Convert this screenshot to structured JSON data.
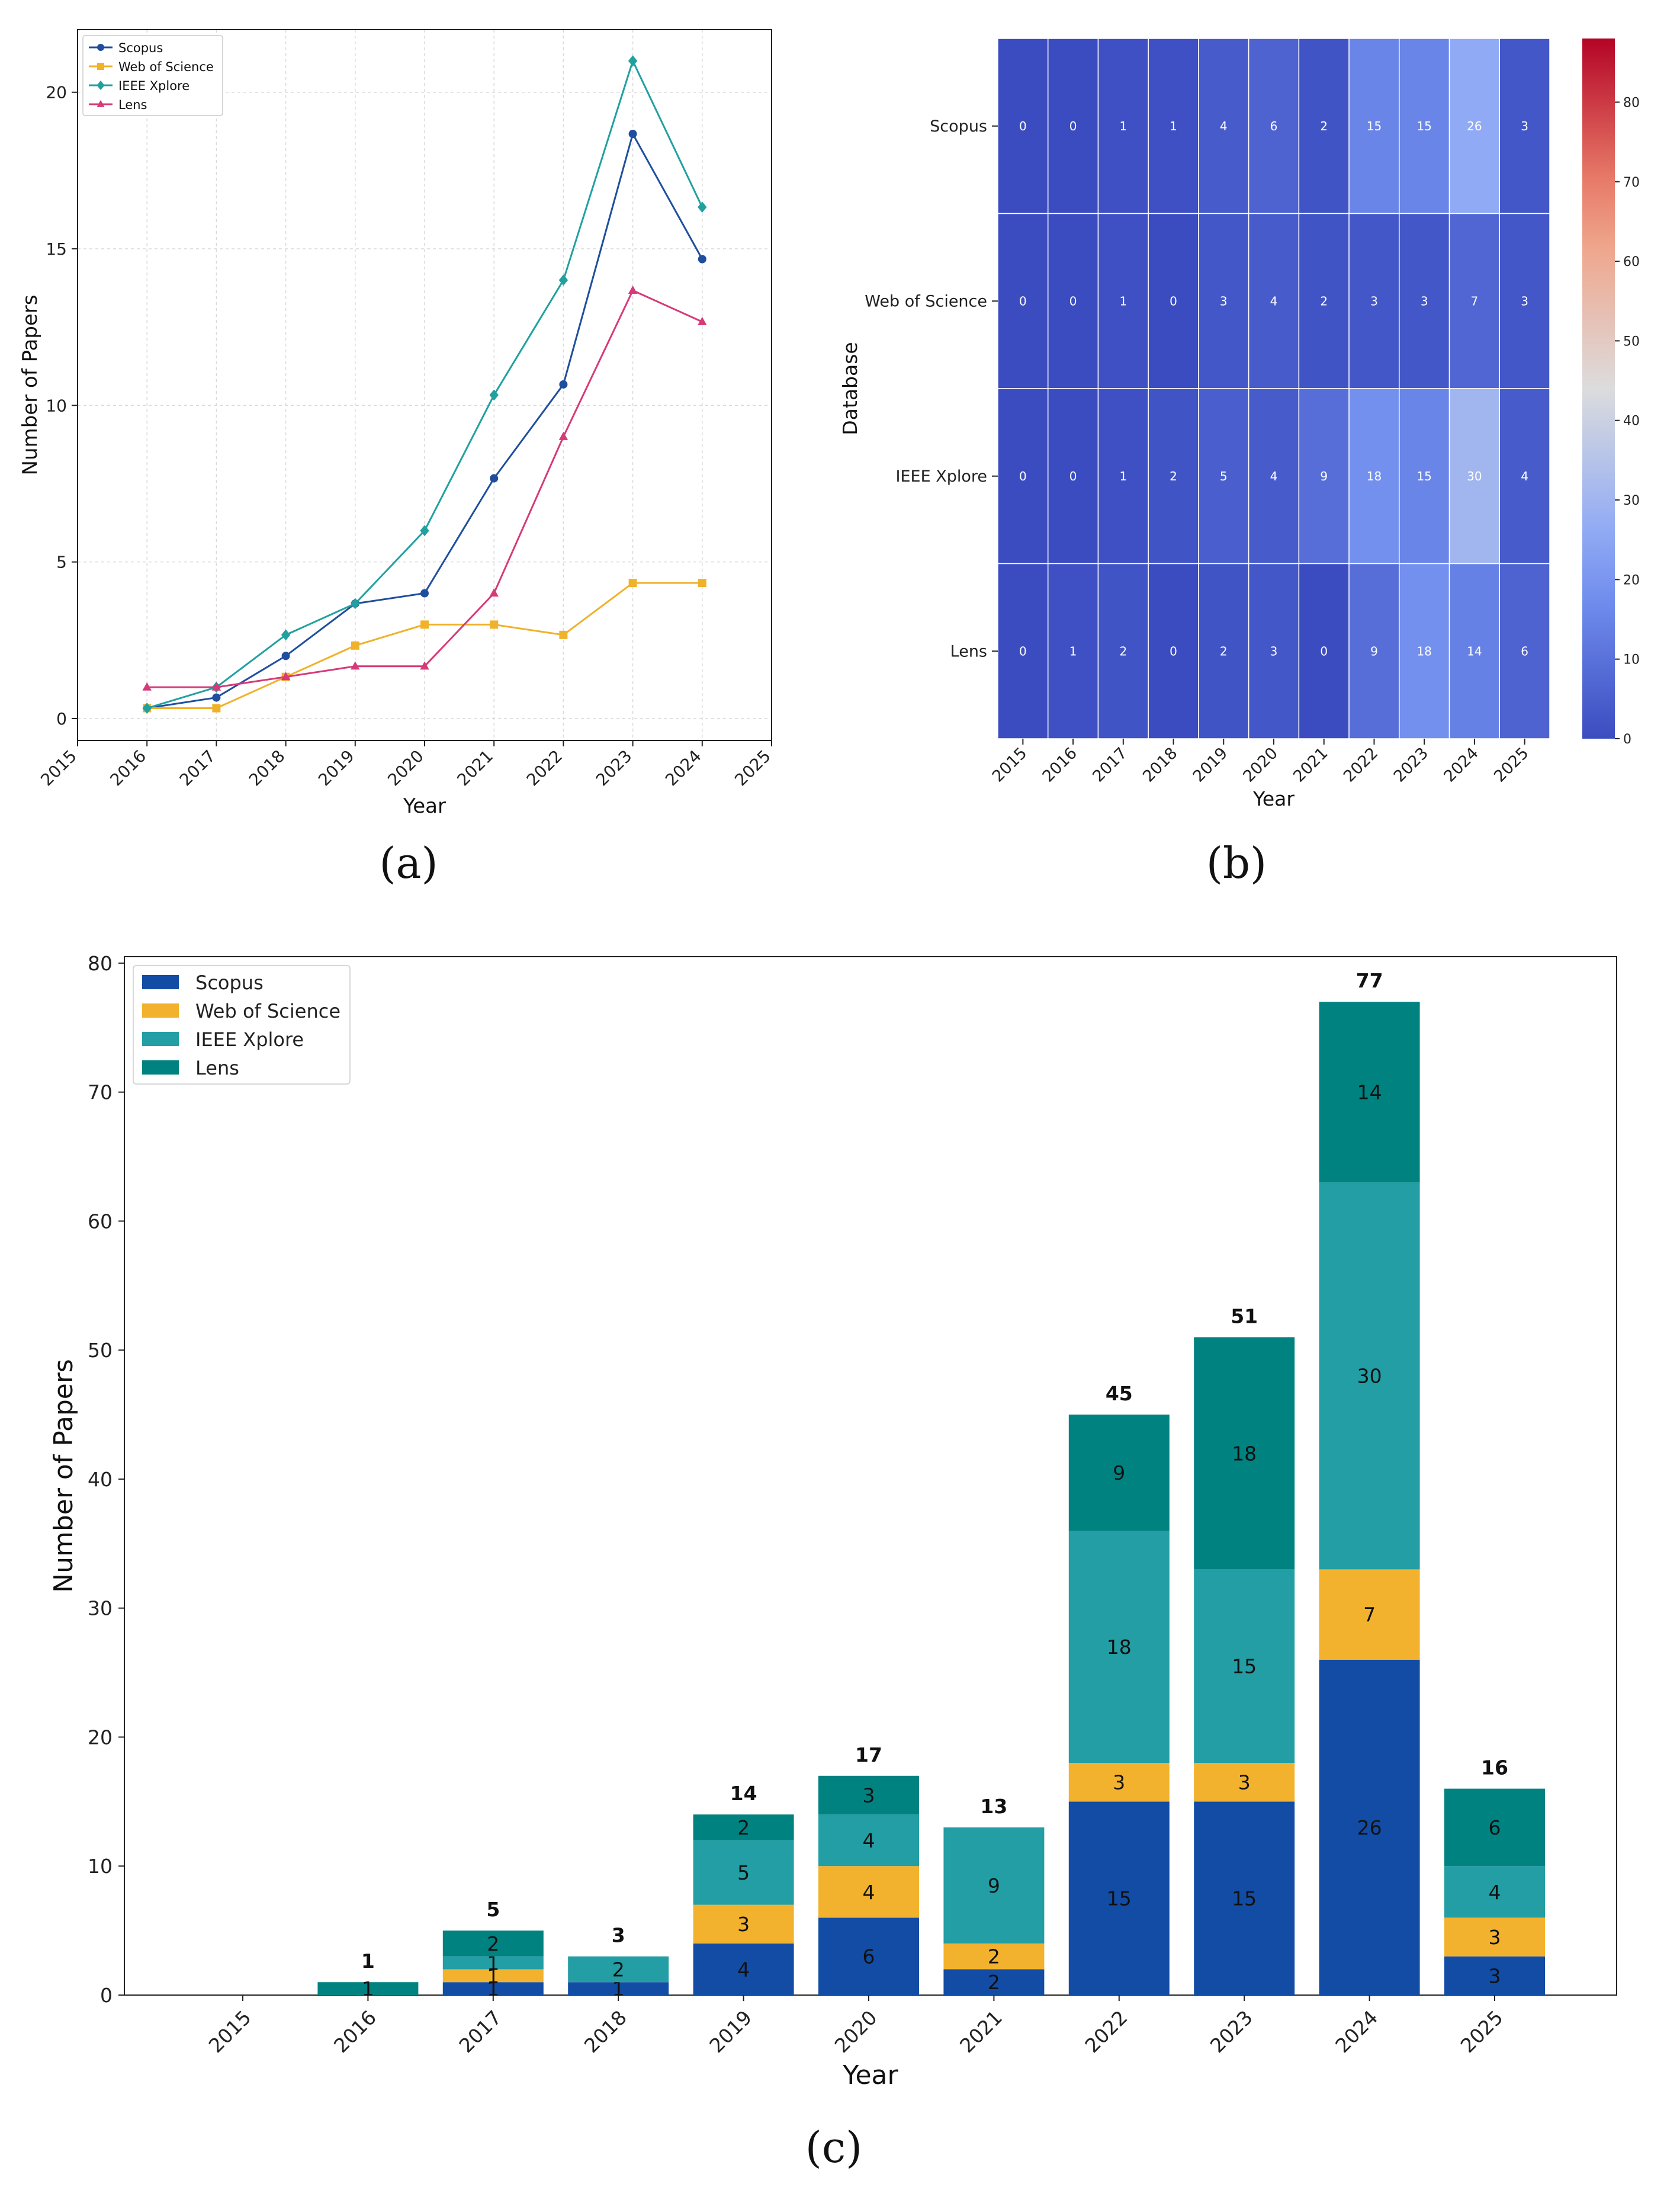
{
  "panel_labels": {
    "a": "(a)",
    "b": "(b)",
    "c": "(c)"
  },
  "chart_data": [
    {
      "id": "a",
      "type": "line",
      "xlabel": "Year",
      "ylabel": "Number of Papers",
      "x_ticks": [
        2015,
        2016,
        2017,
        2018,
        2019,
        2020,
        2021,
        2022,
        2023,
        2024,
        2025
      ],
      "x_range": [
        2015,
        2025
      ],
      "y_ticks": [
        0,
        5,
        10,
        15,
        20
      ],
      "y_range": [
        -0.7,
        22.0
      ],
      "grid": true,
      "legend_position": "top-left",
      "x": [
        2016,
        2017,
        2018,
        2019,
        2020,
        2021,
        2022,
        2023,
        2024
      ],
      "series": [
        {
          "name": "Scopus",
          "color": "#1f4e9e",
          "marker": "circle",
          "values": [
            0.33,
            0.67,
            2.0,
            3.67,
            4.0,
            7.67,
            10.67,
            18.67,
            14.67
          ]
        },
        {
          "name": "Web of Science",
          "color": "#f0b22b",
          "marker": "square",
          "values": [
            0.33,
            0.33,
            1.33,
            2.33,
            3.0,
            3.0,
            2.67,
            4.33,
            4.33
          ]
        },
        {
          "name": "IEEE Xplore",
          "color": "#22a0a0",
          "marker": "diamond",
          "values": [
            0.33,
            1.0,
            2.67,
            3.67,
            6.0,
            10.33,
            14.0,
            21.0,
            16.33
          ]
        },
        {
          "name": "Lens",
          "color": "#d63a78",
          "marker": "triangle",
          "values": [
            1.0,
            1.0,
            1.33,
            1.67,
            1.67,
            4.0,
            9.0,
            13.67,
            12.67
          ]
        }
      ]
    },
    {
      "id": "b",
      "type": "heatmap",
      "xlabel": "Year",
      "ylabel": "Database",
      "x": [
        "2015",
        "2016",
        "2017",
        "2018",
        "2019",
        "2020",
        "2021",
        "2022",
        "2023",
        "2024",
        "2025"
      ],
      "y": [
        "Scopus",
        "Web of Science",
        "IEEE Xplore",
        "Lens"
      ],
      "values": [
        [
          0,
          0,
          1,
          1,
          4,
          6,
          2,
          15,
          15,
          26,
          3
        ],
        [
          0,
          0,
          1,
          0,
          3,
          4,
          2,
          3,
          3,
          7,
          3
        ],
        [
          0,
          0,
          1,
          2,
          5,
          4,
          9,
          18,
          15,
          30,
          4
        ],
        [
          0,
          1,
          2,
          0,
          2,
          3,
          0,
          9,
          18,
          14,
          6
        ]
      ],
      "colormap": "coolwarm",
      "colorbar_range": [
        0,
        88
      ],
      "colorbar_ticks": [
        0,
        10,
        20,
        30,
        40,
        50,
        60,
        70,
        80
      ]
    },
    {
      "id": "c",
      "type": "bar",
      "stacked": true,
      "xlabel": "Year",
      "ylabel": "Number of Papers",
      "categories": [
        "2015",
        "2016",
        "2017",
        "2018",
        "2019",
        "2020",
        "2021",
        "2022",
        "2023",
        "2024",
        "2025"
      ],
      "y_ticks": [
        0,
        10,
        20,
        30,
        40,
        50,
        60,
        70,
        80
      ],
      "y_range": [
        0,
        80.5
      ],
      "legend_position": "top-left",
      "series": [
        {
          "name": "Scopus",
          "color": "#124ca4",
          "values": [
            0,
            0,
            1,
            1,
            4,
            6,
            2,
            15,
            15,
            26,
            3
          ]
        },
        {
          "name": "Web of Science",
          "color": "#f3b22d",
          "values": [
            0,
            0,
            1,
            0,
            3,
            4,
            2,
            3,
            3,
            7,
            3
          ]
        },
        {
          "name": "IEEE Xplore",
          "color": "#229ea4",
          "values": [
            0,
            0,
            1,
            2,
            5,
            4,
            9,
            18,
            15,
            30,
            4
          ]
        },
        {
          "name": "Lens",
          "color": "#008281",
          "values": [
            0,
            1,
            2,
            0,
            2,
            3,
            0,
            9,
            18,
            14,
            6
          ]
        }
      ],
      "totals": [
        0,
        1,
        5,
        3,
        14,
        17,
        13,
        45,
        51,
        77,
        16
      ]
    }
  ]
}
